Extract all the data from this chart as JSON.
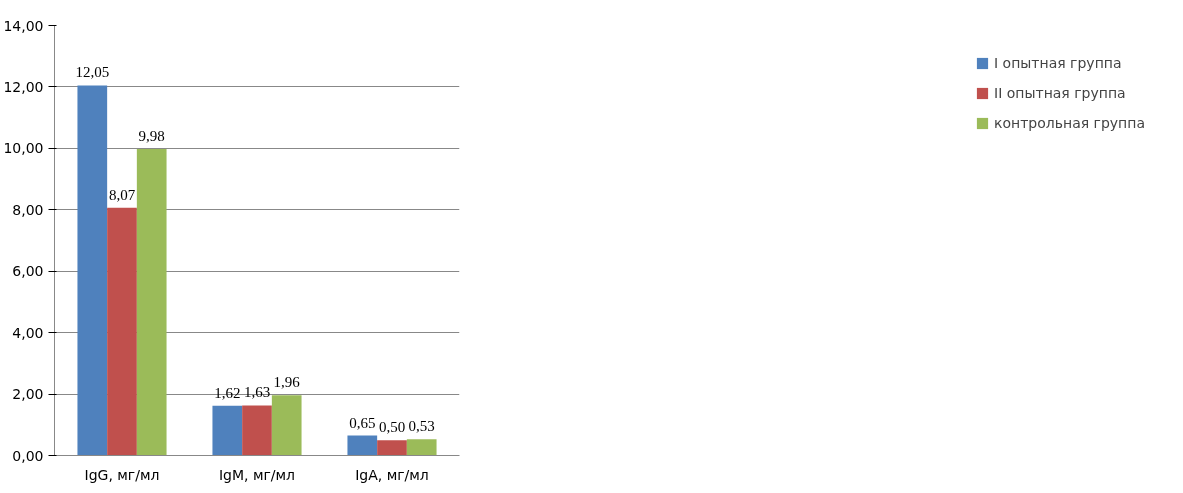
{
  "chart_data": {
    "type": "bar",
    "categories": [
      "IgG, мг/мл",
      "IgM, мг/мл",
      "IgA, мг/мл"
    ],
    "series": [
      {
        "name": "I опытная группа",
        "color": "#4f81bd",
        "values": [
          12.05,
          1.62,
          0.65
        ],
        "value_labels": [
          "12,05",
          "1,62",
          "0,65"
        ]
      },
      {
        "name": "II опытная группа",
        "color": "#c0504d",
        "values": [
          8.07,
          1.63,
          0.5
        ],
        "value_labels": [
          "8,07",
          "1,63",
          "0,50"
        ]
      },
      {
        "name": "контрольная группа",
        "color": "#9bbb59",
        "values": [
          9.98,
          1.96,
          0.53
        ],
        "value_labels": [
          "9,98",
          "1,96",
          "0,53"
        ]
      }
    ],
    "ylim": [
      0,
      14
    ],
    "yticks": [
      {
        "value": 0,
        "label": "0,00"
      },
      {
        "value": 2,
        "label": "2,00"
      },
      {
        "value": 4,
        "label": "4,00"
      },
      {
        "value": 6,
        "label": "6,00"
      },
      {
        "value": 8,
        "label": "8,00"
      },
      {
        "value": 10,
        "label": "10,00"
      },
      {
        "value": 12,
        "label": "12,00"
      },
      {
        "value": 14,
        "label": "14,00"
      }
    ],
    "grid": "y",
    "legend": "right"
  }
}
